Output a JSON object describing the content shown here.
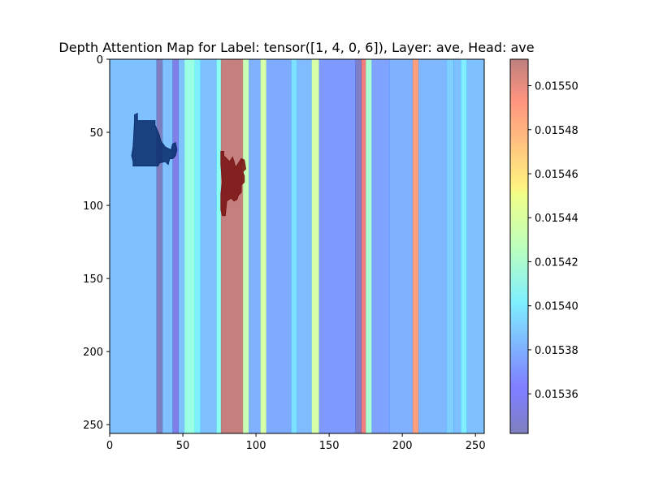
{
  "chart_data": {
    "type": "heatmap",
    "title": "Depth Attention Map for Label: tensor([1, 4, 0, 6]), Layer: ave, Head: ave",
    "xlabel": "",
    "ylabel": "",
    "xlim": [
      0,
      256
    ],
    "ylim": [
      256,
      0
    ],
    "x_ticks": [
      "0",
      "50",
      "100",
      "150",
      "200",
      "250"
    ],
    "y_ticks": [
      "0",
      "50",
      "100",
      "150",
      "200",
      "250"
    ],
    "colorbar": {
      "range": [
        0.015342,
        0.015512
      ],
      "ticks": [
        "0.01536",
        "0.01538",
        "0.01540",
        "0.01542",
        "0.01544",
        "0.01546",
        "0.01548",
        "0.01550"
      ],
      "tick_values": [
        0.01536,
        0.01538,
        0.0154,
        0.01542,
        0.01544,
        0.01546,
        0.01548,
        0.0155
      ],
      "colormap": "jet",
      "alpha": 0.5
    },
    "column_bands": [
      {
        "x0": 0,
        "x1": 32,
        "value": 0.015385
      },
      {
        "x0": 32,
        "x1": 36,
        "value": 0.015342
      },
      {
        "x0": 36,
        "x1": 43,
        "value": 0.015385
      },
      {
        "x0": 43,
        "x1": 47,
        "value": 0.015355
      },
      {
        "x0": 47,
        "x1": 51,
        "value": 0.015385
      },
      {
        "x0": 51,
        "x1": 58,
        "value": 0.015415
      },
      {
        "x0": 58,
        "x1": 62,
        "value": 0.0154
      },
      {
        "x0": 62,
        "x1": 73,
        "value": 0.015385
      },
      {
        "x0": 73,
        "x1": 76,
        "value": 0.01541
      },
      {
        "x0": 76,
        "x1": 91,
        "value": 0.01551
      },
      {
        "x0": 91,
        "x1": 95,
        "value": 0.01543
      },
      {
        "x0": 95,
        "x1": 103,
        "value": 0.01538
      },
      {
        "x0": 103,
        "x1": 107,
        "value": 0.015435
      },
      {
        "x0": 107,
        "x1": 124,
        "value": 0.015378
      },
      {
        "x0": 124,
        "x1": 128,
        "value": 0.015395
      },
      {
        "x0": 128,
        "x1": 138,
        "value": 0.015383
      },
      {
        "x0": 138,
        "x1": 143,
        "value": 0.015435
      },
      {
        "x0": 143,
        "x1": 168,
        "value": 0.015372
      },
      {
        "x0": 168,
        "x1": 172,
        "value": 0.015345
      },
      {
        "x0": 172,
        "x1": 175,
        "value": 0.015495
      },
      {
        "x0": 175,
        "x1": 179,
        "value": 0.01542
      },
      {
        "x0": 179,
        "x1": 191,
        "value": 0.015375
      },
      {
        "x0": 191,
        "x1": 207,
        "value": 0.01538
      },
      {
        "x0": 207,
        "x1": 211,
        "value": 0.01548
      },
      {
        "x0": 211,
        "x1": 230,
        "value": 0.015382
      },
      {
        "x0": 230,
        "x1": 235,
        "value": 0.01539
      },
      {
        "x0": 235,
        "x1": 240,
        "value": 0.015384
      },
      {
        "x0": 240,
        "x1": 244,
        "value": 0.0154
      },
      {
        "x0": 244,
        "x1": 256,
        "value": 0.015385
      }
    ],
    "overlay_shapes": [
      {
        "name": "dark-blue-object",
        "color": "#0b2f6e",
        "points": [
          [
            17,
            38
          ],
          [
            17,
            42
          ],
          [
            16,
            60
          ],
          [
            15,
            66
          ],
          [
            16,
            70
          ],
          [
            16,
            73
          ],
          [
            33,
            73
          ],
          [
            34,
            71
          ],
          [
            38,
            70
          ],
          [
            40,
            72
          ],
          [
            41,
            68
          ],
          [
            43,
            68
          ],
          [
            45,
            66
          ],
          [
            46,
            62
          ],
          [
            45,
            57
          ],
          [
            43,
            58
          ],
          [
            42,
            62
          ],
          [
            38,
            60
          ],
          [
            35,
            56
          ],
          [
            34,
            52
          ],
          [
            31,
            45
          ],
          [
            31,
            42
          ],
          [
            19,
            42
          ],
          [
            19,
            37
          ]
        ]
      },
      {
        "name": "dark-red-object",
        "color": "#7a1414",
        "points": [
          [
            76,
            63
          ],
          [
            76,
            72
          ],
          [
            77,
            84
          ],
          [
            76,
            92
          ],
          [
            76,
            103
          ],
          [
            77,
            107
          ],
          [
            79,
            107
          ],
          [
            80,
            97
          ],
          [
            83,
            95
          ],
          [
            85,
            97
          ],
          [
            87,
            96
          ],
          [
            88,
            93
          ],
          [
            90,
            91
          ],
          [
            90,
            86
          ],
          [
            92,
            84
          ],
          [
            92,
            80
          ],
          [
            91,
            77
          ],
          [
            93,
            75
          ],
          [
            92,
            69
          ],
          [
            90,
            68
          ],
          [
            88,
            71
          ],
          [
            86,
            74
          ],
          [
            85,
            70
          ],
          [
            84,
            67
          ],
          [
            82,
            70
          ],
          [
            80,
            68
          ],
          [
            78,
            66
          ],
          [
            78,
            63
          ]
        ]
      }
    ]
  }
}
